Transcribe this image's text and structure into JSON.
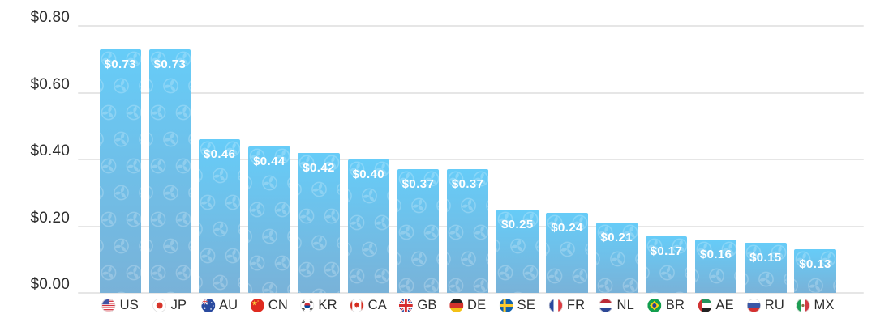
{
  "chart_data": {
    "type": "bar",
    "title": "",
    "categories": [
      "US",
      "JP",
      "AU",
      "CN",
      "KR",
      "CA",
      "GB",
      "DE",
      "SE",
      "FR",
      "NL",
      "BR",
      "AE",
      "RU",
      "MX"
    ],
    "values": [
      0.73,
      0.73,
      0.46,
      0.44,
      0.42,
      0.4,
      0.37,
      0.37,
      0.25,
      0.24,
      0.21,
      0.17,
      0.16,
      0.15,
      0.13
    ],
    "value_labels": [
      "$0.73",
      "$0.73",
      "$0.46",
      "$0.44",
      "$0.42",
      "$0.40",
      "$0.37",
      "$0.37",
      "$0.25",
      "$0.24",
      "$0.21",
      "$0.17",
      "$0.16",
      "$0.15",
      "$0.13"
    ],
    "flag_icons": [
      "flag-us-icon",
      "flag-jp-icon",
      "flag-au-icon",
      "flag-cn-icon",
      "flag-kr-icon",
      "flag-ca-icon",
      "flag-gb-icon",
      "flag-de-icon",
      "flag-se-icon",
      "flag-fr-icon",
      "flag-nl-icon",
      "flag-br-icon",
      "flag-ae-icon",
      "flag-ru-icon",
      "flag-mx-icon"
    ],
    "y_axis": {
      "tick_labels": [
        "$0.80",
        "$0.60",
        "$0.40",
        "$0.20",
        "$0.00"
      ],
      "tick_values": [
        0.8,
        0.6,
        0.4,
        0.2,
        0.0
      ],
      "ylim": [
        0,
        0.8
      ]
    },
    "xlabel": "",
    "ylabel": "",
    "grid": true,
    "legend": false,
    "watermark_icon": "pinwheel-spinner-icon"
  },
  "styles": {
    "bar_gradient_top": "#66ccf8",
    "bar_gradient_bottom": "#79b2d8",
    "grid_color": "#e6e6e6",
    "axis_label_color": "#2d2d2d",
    "value_label_color": "#ffffff",
    "background": "#ffffff",
    "watermark_color": "#ffffff"
  }
}
